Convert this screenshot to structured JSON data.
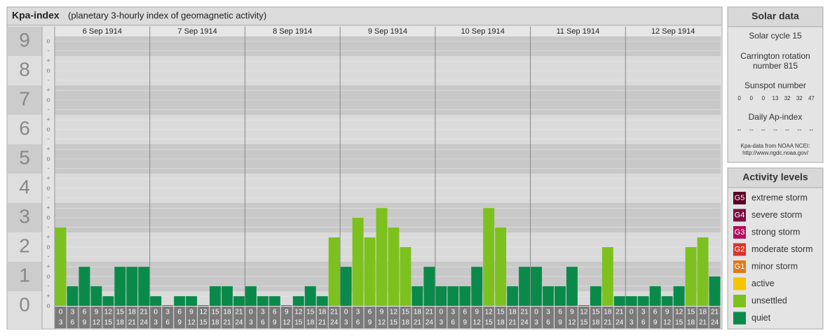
{
  "chart_data": {
    "type": "bar",
    "title": "Kpa-index",
    "subtitle": "(planetary 3-hourly index of geomagnetic activity)",
    "ylim": [
      0,
      9.5
    ],
    "yticks": [
      0,
      1,
      2,
      3,
      4,
      5,
      6,
      7,
      8,
      9
    ],
    "grid": true,
    "minor_ticks": [
      {
        "value": 0,
        "label": "o"
      },
      {
        "value": 0.33,
        "label": "+"
      },
      {
        "value": 0.67,
        "label": "-"
      },
      {
        "value": 1,
        "label": "o"
      },
      {
        "value": 1.33,
        "label": "+"
      },
      {
        "value": 1.67,
        "label": "-"
      },
      {
        "value": 2,
        "label": "o"
      },
      {
        "value": 2.33,
        "label": "+"
      },
      {
        "value": 2.67,
        "label": "-"
      },
      {
        "value": 3,
        "label": "o"
      },
      {
        "value": 3.33,
        "label": "+"
      },
      {
        "value": 3.67,
        "label": "-"
      },
      {
        "value": 4,
        "label": "o"
      },
      {
        "value": 4.33,
        "label": "+"
      },
      {
        "value": 4.67,
        "label": "-"
      },
      {
        "value": 5,
        "label": "o"
      },
      {
        "value": 5.33,
        "label": "+"
      },
      {
        "value": 5.67,
        "label": "-"
      },
      {
        "value": 6,
        "label": "o"
      },
      {
        "value": 6.33,
        "label": "+"
      },
      {
        "value": 6.67,
        "label": "-"
      },
      {
        "value": 7,
        "label": "o"
      },
      {
        "value": 7.33,
        "label": "+"
      },
      {
        "value": 7.67,
        "label": "-"
      },
      {
        "value": 8,
        "label": "o"
      },
      {
        "value": 8.33,
        "label": "+"
      },
      {
        "value": 8.67,
        "label": "-"
      },
      {
        "value": 9,
        "label": "o"
      }
    ],
    "hour_labels": [
      [
        "0",
        "3"
      ],
      [
        "3",
        "6"
      ],
      [
        "6",
        "9"
      ],
      [
        "9",
        "12"
      ],
      [
        "12",
        "15"
      ],
      [
        "15",
        "18"
      ],
      [
        "18",
        "21"
      ],
      [
        "21",
        "24"
      ]
    ],
    "days": [
      {
        "label": "6 Sep 1914",
        "values": [
          2.67,
          0.67,
          1.33,
          0.67,
          0.33,
          1.33,
          1.33,
          1.33
        ],
        "colors": [
          "#7dc11f",
          "#0a8a4a",
          "#0a8a4a",
          "#0a8a4a",
          "#0a8a4a",
          "#0a8a4a",
          "#0a8a4a",
          "#0a8a4a"
        ]
      },
      {
        "label": "7 Sep 1914",
        "values": [
          0.33,
          0,
          0.33,
          0.33,
          0,
          0.67,
          0.67,
          0.33
        ],
        "colors": [
          "#0a8a4a",
          "#0a8a4a",
          "#0a8a4a",
          "#0a8a4a",
          "#0a8a4a",
          "#0a8a4a",
          "#0a8a4a",
          "#0a8a4a"
        ]
      },
      {
        "label": "8 Sep 1914",
        "values": [
          0.67,
          0.33,
          0.33,
          0,
          0.33,
          0.67,
          0.33,
          2.33
        ],
        "colors": [
          "#0a8a4a",
          "#0a8a4a",
          "#0a8a4a",
          "#0a8a4a",
          "#0a8a4a",
          "#0a8a4a",
          "#0a8a4a",
          "#7dc11f"
        ]
      },
      {
        "label": "9 Sep 1914",
        "values": [
          1.33,
          3,
          2.33,
          3.33,
          2.67,
          2,
          0.67,
          1.33
        ],
        "colors": [
          "#0a8a4a",
          "#7dc11f",
          "#7dc11f",
          "#7dc11f",
          "#7dc11f",
          "#7dc11f",
          "#0a8a4a",
          "#0a8a4a"
        ]
      },
      {
        "label": "10 Sep 1914",
        "values": [
          0.67,
          0.67,
          0.67,
          1.33,
          3.33,
          2.67,
          0.67,
          1.33
        ],
        "colors": [
          "#0a8a4a",
          "#0a8a4a",
          "#0a8a4a",
          "#0a8a4a",
          "#7dc11f",
          "#7dc11f",
          "#0a8a4a",
          "#0a8a4a"
        ]
      },
      {
        "label": "11 Sep 1914",
        "values": [
          1.33,
          0.67,
          0.67,
          1.33,
          0,
          0.67,
          2,
          0.33
        ],
        "colors": [
          "#0a8a4a",
          "#0a8a4a",
          "#0a8a4a",
          "#0a8a4a",
          "#0a8a4a",
          "#0a8a4a",
          "#7dc11f",
          "#0a8a4a"
        ]
      },
      {
        "label": "12 Sep 1914",
        "values": [
          0.33,
          0.33,
          0.67,
          0.33,
          0.67,
          2,
          2.33,
          1
        ],
        "colors": [
          "#0a8a4a",
          "#0a8a4a",
          "#0a8a4a",
          "#0a8a4a",
          "#0a8a4a",
          "#7dc11f",
          "#7dc11f",
          "#0a8a4a"
        ]
      }
    ]
  },
  "solar_data": {
    "title": "Solar data",
    "cycle": "Solar cycle 15",
    "carrington": [
      "Carrington rotation",
      "number 815"
    ],
    "sunspot_label": "Sunspot number",
    "sunspot_numbers": [
      0,
      0,
      0,
      13,
      32,
      32,
      47
    ],
    "ap_label": "Daily Ap-index",
    "ap_values": [
      "--",
      "--",
      "--",
      "--",
      "--",
      "--",
      "--"
    ],
    "source": [
      "Kpa-data from NOAA NCEI:",
      "http://www.ngdc.noaa.gov/"
    ]
  },
  "activity_levels": {
    "title": "Activity levels",
    "items": [
      {
        "code": "G5",
        "label": "extreme storm",
        "color": "#5a0024"
      },
      {
        "code": "G4",
        "label": "severe storm",
        "color": "#7a0c40"
      },
      {
        "code": "G3",
        "label": "strong storm",
        "color": "#b0105c"
      },
      {
        "code": "G2",
        "label": "moderate storm",
        "color": "#d9342a"
      },
      {
        "code": "G1",
        "label": "minor storm",
        "color": "#e07b1a"
      },
      {
        "label": "active",
        "color": "#f5c400"
      },
      {
        "label": "unsettled",
        "color": "#7dc11f"
      },
      {
        "label": "quiet",
        "color": "#0a8a4a"
      }
    ]
  }
}
